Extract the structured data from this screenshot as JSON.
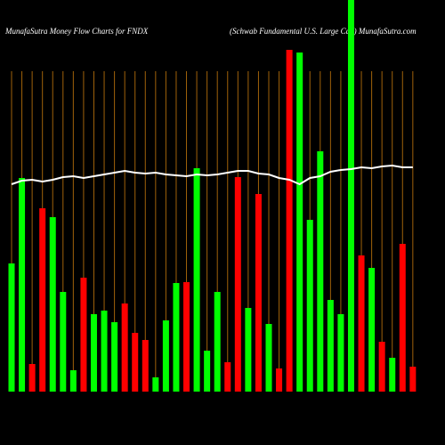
{
  "chart_data": {
    "type": "bar",
    "title": "MunafaSutra  Money Flow  Charts for FNDX",
    "subtitle": "(Schwab Fundamental U.S. Large   Cap) MunafaSutra.com",
    "categories": [
      null,
      null,
      null,
      null,
      null,
      null,
      null,
      null,
      null,
      null,
      null,
      null,
      null,
      null,
      null,
      null,
      null,
      null,
      null,
      null,
      null,
      null,
      null,
      null,
      null,
      null,
      null,
      null,
      null,
      null,
      null,
      null,
      null,
      null,
      null,
      null,
      null,
      null,
      null,
      null
    ],
    "values": [
      144,
      240,
      31,
      206,
      196,
      112,
      24,
      128,
      87,
      91,
      78,
      99,
      66,
      58,
      16,
      80,
      122,
      123,
      251,
      46,
      112,
      33,
      241,
      94,
      222,
      76,
      26,
      384,
      381,
      193,
      270,
      103,
      87,
      440,
      153,
      139,
      56,
      38,
      166,
      28
    ],
    "colors": [
      "#00ff00",
      "#00ff00",
      "#ff0000",
      "#ff0000",
      "#00ff00",
      "#00ff00",
      "#00ff00",
      "#ff0000",
      "#00ff00",
      "#00ff00",
      "#00ff00",
      "#ff0000",
      "#ff0000",
      "#ff0000",
      "#00ff00",
      "#00ff00",
      "#00ff00",
      "#ff0000",
      "#00ff00",
      "#00ff00",
      "#00ff00",
      "#ff0000",
      "#ff0000",
      "#00ff00",
      "#ff0000",
      "#00ff00",
      "#ff0000",
      "#ff0000",
      "#00ff00",
      "#00ff00",
      "#00ff00",
      "#00ff00",
      "#00ff00",
      "#00ff00",
      "#ff0000",
      "#00ff00",
      "#ff0000",
      "#00ff00",
      "#ff0000",
      "#ff0000"
    ],
    "line_values": [
      233,
      237,
      238,
      236,
      238,
      241,
      242,
      240,
      242,
      244,
      246,
      248,
      246,
      245,
      246,
      244,
      243,
      242,
      244,
      243,
      244,
      246,
      248,
      248,
      245,
      244,
      240,
      238,
      233,
      240,
      242,
      247,
      249,
      250,
      252,
      251,
      253,
      254,
      252,
      252
    ],
    "line_color": "#ffffff",
    "grid_color": "#a0620a",
    "ylim": [
      0,
      440
    ]
  }
}
